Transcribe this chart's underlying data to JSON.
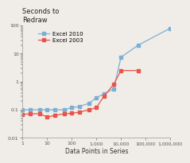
{
  "title": "Seconds to\nRedraw",
  "xlabel": "Data Points in Series",
  "excel2010_x": [
    1,
    2,
    5,
    10,
    20,
    50,
    100,
    200,
    500,
    1000,
    2000,
    5000,
    10000,
    50000,
    1000000
  ],
  "excel2010_y": [
    0.1,
    0.1,
    0.1,
    0.1,
    0.1,
    0.1,
    0.12,
    0.13,
    0.17,
    0.27,
    0.37,
    0.55,
    7.5,
    20,
    80
  ],
  "excel2003_x": [
    1,
    2,
    5,
    10,
    20,
    50,
    100,
    200,
    500,
    1000,
    2000,
    5000,
    10000,
    50000
  ],
  "excel2003_y": [
    0.068,
    0.072,
    0.072,
    0.055,
    0.063,
    0.072,
    0.075,
    0.082,
    0.1,
    0.12,
    0.3,
    0.8,
    2.5,
    2.5
  ],
  "color_2010": "#7bafd4",
  "color_2003": "#e8534a",
  "xlim": [
    1,
    1000000
  ],
  "ylim": [
    0.01,
    100
  ],
  "xticks": [
    1,
    10,
    100,
    1000,
    10000,
    100000,
    1000000
  ],
  "xtick_labels": [
    "1",
    "10",
    "100",
    "1,000",
    "10,000",
    "100,000",
    "1,000,000"
  ],
  "yticks": [
    0.01,
    0.1,
    1,
    10,
    100
  ],
  "ytick_labels": [
    "0.01",
    "0.1",
    "1",
    "10",
    "100"
  ],
  "legend_labels": [
    "Excel 2010",
    "Excel 2003"
  ],
  "bg_color": "#f0ede8"
}
